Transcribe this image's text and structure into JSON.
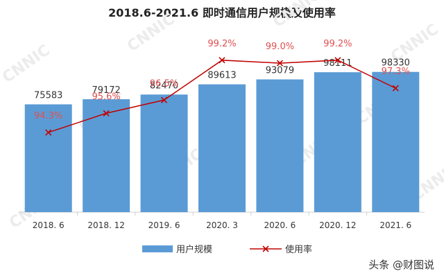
{
  "watermark": "CNNIC",
  "source": "头条 @财图说",
  "colors": {
    "bar": "#5b9bd5",
    "line": "#c00000",
    "line_label": "#e05050",
    "text": "#333333",
    "axis": "#cfcfcf"
  },
  "chart_data": {
    "type": "bar",
    "title": "2018.6-2021.6 即时通信用户规模及使用率",
    "categories": [
      "2018. 6",
      "2018. 12",
      "2019. 6",
      "2020. 3",
      "2020. 6",
      "2020. 12",
      "2021. 6"
    ],
    "series": [
      {
        "name": "用户规模",
        "type": "bar",
        "values": [
          75583,
          79172,
          82470,
          89613,
          93079,
          98111,
          98330
        ]
      },
      {
        "name": "使用率",
        "type": "line",
        "values": [
          94.3,
          95.6,
          96.5,
          99.2,
          99.0,
          99.2,
          97.3
        ],
        "labels": [
          "94.3%",
          "95.6%",
          "96.5%",
          "99.2%",
          "99.0%",
          "99.2%",
          "97.3%"
        ]
      }
    ],
    "bar_ylim": [
      0,
      140000
    ],
    "line_ylim": [
      80,
      104
    ],
    "legend_position": "bottom",
    "grid": false
  }
}
